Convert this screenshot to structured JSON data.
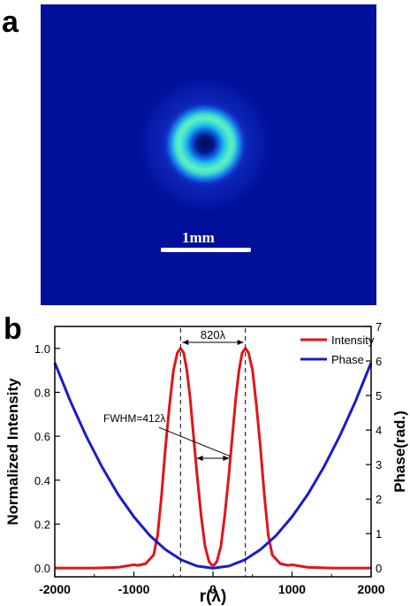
{
  "panel_a": {
    "letter": "a",
    "scale_label": "1mm",
    "background_color": "#00109a"
  },
  "panel_b": {
    "letter": "b"
  },
  "chart_data": {
    "type": "line",
    "xlabel": "r(λ)",
    "ylabel_left": "Normalized Intensity",
    "ylabel_right": "Phase(rad.)",
    "xlim": [
      -2000,
      2000
    ],
    "ylim_left": [
      -0.04,
      1.1
    ],
    "ylim_right": [
      -0.25,
      7
    ],
    "x_ticks": [
      "-2000",
      "-1000",
      "0",
      "1000",
      "2000"
    ],
    "y_left_ticks": [
      "0.0",
      "0.2",
      "0.4",
      "0.6",
      "0.8",
      "1.0"
    ],
    "y_right_ticks": [
      "0",
      "1",
      "2",
      "3",
      "4",
      "5",
      "6",
      "7"
    ],
    "legend": {
      "placement": "top-right",
      "entries": [
        "Intensity",
        "Phase"
      ]
    },
    "colors": {
      "intensity": "#e0151b",
      "phase": "#1a1ad0"
    },
    "annotations": {
      "peak_spacing": "820λ",
      "fwhm": "FWHM=412λ"
    },
    "series": [
      {
        "name": "Intensity",
        "axis": "left",
        "x": [
          -2000,
          -1500,
          -1200,
          -1050,
          -1000,
          -950,
          -850,
          -750,
          -700,
          -650,
          -600,
          -550,
          -500,
          -450,
          -410,
          -370,
          -330,
          -290,
          -250,
          -200,
          -150,
          -100,
          -50,
          -20,
          0,
          20,
          50,
          100,
          150,
          200,
          250,
          290,
          330,
          370,
          410,
          450,
          500,
          550,
          600,
          650,
          700,
          750,
          850,
          950,
          1000,
          1050,
          1200,
          1500,
          2000
        ],
        "values": [
          0.0,
          0.0,
          0.003,
          0.012,
          0.015,
          0.012,
          0.02,
          0.06,
          0.15,
          0.33,
          0.55,
          0.74,
          0.9,
          0.98,
          1.0,
          0.98,
          0.9,
          0.78,
          0.62,
          0.42,
          0.24,
          0.1,
          0.03,
          0.015,
          0.012,
          0.015,
          0.03,
          0.1,
          0.24,
          0.42,
          0.62,
          0.78,
          0.9,
          0.98,
          1.0,
          0.98,
          0.9,
          0.74,
          0.55,
          0.33,
          0.15,
          0.06,
          0.02,
          0.012,
          0.015,
          0.012,
          0.003,
          0.0,
          0.0
        ]
      },
      {
        "name": "Phase",
        "axis": "right",
        "x": [
          -2000,
          -1800,
          -1600,
          -1400,
          -1200,
          -1000,
          -800,
          -600,
          -400,
          -200,
          0,
          200,
          400,
          600,
          800,
          1000,
          1200,
          1400,
          1600,
          1800,
          2000
        ],
        "values": [
          5.95,
          4.82,
          3.81,
          2.92,
          2.14,
          1.49,
          0.95,
          0.54,
          0.24,
          0.06,
          0.0,
          0.06,
          0.24,
          0.54,
          0.95,
          1.49,
          2.14,
          2.92,
          3.81,
          4.82,
          5.95
        ]
      }
    ]
  }
}
